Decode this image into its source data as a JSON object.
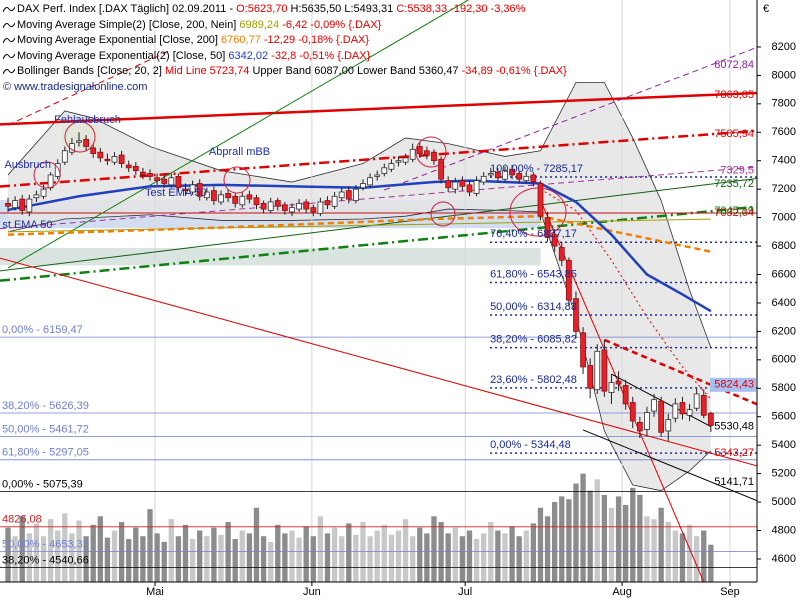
{
  "chart_data": {
    "type": "candlestick",
    "legend": [
      [
        {
          "text": "DAX Perf. Index [.DAX Täglich] 02.09.2011 - ",
          "color": "#000000"
        },
        {
          "text": "O:5623,70",
          "color": "#e00000"
        },
        {
          "text": " H:5635,50 L:5493,31 ",
          "color": "#000000"
        },
        {
          "text": "C:5538,33 -192,30 -3,36%",
          "color": "#e00000"
        }
      ],
      [
        {
          "text": "Moving Average Simple(2) [Close, 200, Nein] ",
          "color": "#000000"
        },
        {
          "text": "6989,24",
          "color": "#a0a000"
        },
        {
          "text": " -6,42 -0,09% {.DAX}",
          "color": "#e00000"
        }
      ],
      [
        {
          "text": "Moving Average Exponential [Close, 200] ",
          "color": "#000000"
        },
        {
          "text": "6760,77",
          "color": "#f08000"
        },
        {
          "text": " -12,29 -0,18% {.DAX}",
          "color": "#e00000"
        }
      ],
      [
        {
          "text": "Moving Average Exponential(2) [Close, 50] ",
          "color": "#000000"
        },
        {
          "text": "6342,02",
          "color": "#2040c0"
        },
        {
          "text": " -32,8 -0,51% {.DAX}",
          "color": "#e00000"
        }
      ],
      [
        {
          "text": "Bollinger Bands [Close, 20, 2] ",
          "color": "#000000"
        },
        {
          "text": "Mid Line 5723,74",
          "color": "#e00000"
        },
        {
          "text": " Upper Band 6087,00 Lower Band 5360,47 ",
          "color": "#000000"
        },
        {
          "text": "-34,89 -0,61% {.DAX}",
          "color": "#e00000"
        }
      ]
    ],
    "watermark": "© www.tradesignalonline.com",
    "currency": "€",
    "xlim": [
      -1.13,
      105.5
    ],
    "xticks": [
      {
        "value": 20.7,
        "label": "Mai"
      },
      {
        "value": 42.8,
        "label": "Jun"
      },
      {
        "value": 64.4,
        "label": "Jul"
      },
      {
        "value": 86.5,
        "label": "Aug"
      },
      {
        "value": 101.7,
        "label": "Sep"
      }
    ],
    "grid": "x",
    "ylim": [
      4438,
      8530
    ],
    "yticks": [
      4600,
      4800,
      5000,
      5200,
      5400,
      5600,
      5800,
      6000,
      6200,
      6400,
      6600,
      6800,
      7000,
      7200,
      7400,
      7600,
      7800,
      8000,
      8200
    ],
    "up_color": "#ffffff",
    "down_color": "#e8202a",
    "candles": [
      [
        7100,
        7140,
        7040,
        7080
      ],
      [
        7070,
        7150,
        7050,
        7120
      ],
      [
        7130,
        7160,
        7020,
        7050
      ],
      [
        7040,
        7160,
        7010,
        7130
      ],
      [
        7140,
        7190,
        7110,
        7160
      ],
      [
        7150,
        7230,
        7130,
        7200
      ],
      [
        7210,
        7320,
        7190,
        7300
      ],
      [
        7290,
        7410,
        7270,
        7380
      ],
      [
        7390,
        7500,
        7370,
        7470
      ],
      [
        7460,
        7560,
        7440,
        7520
      ],
      [
        7530,
        7600,
        7500,
        7540
      ],
      [
        7550,
        7580,
        7470,
        7500
      ],
      [
        7490,
        7520,
        7420,
        7450
      ],
      [
        7460,
        7490,
        7390,
        7420
      ],
      [
        7410,
        7450,
        7370,
        7400
      ],
      [
        7390,
        7460,
        7370,
        7430
      ],
      [
        7440,
        7470,
        7350,
        7380
      ],
      [
        7370,
        7400,
        7320,
        7350
      ],
      [
        7360,
        7390,
        7300,
        7330
      ],
      [
        7320,
        7350,
        7270,
        7300
      ],
      [
        7310,
        7340,
        7260,
        7290
      ],
      [
        7280,
        7310,
        7230,
        7260
      ],
      [
        7270,
        7300,
        7210,
        7240
      ],
      [
        7230,
        7310,
        7210,
        7280
      ],
      [
        7290,
        7310,
        7180,
        7210
      ],
      [
        7200,
        7240,
        7160,
        7190
      ],
      [
        7180,
        7260,
        7160,
        7230
      ],
      [
        7240,
        7270,
        7120,
        7150
      ],
      [
        7140,
        7210,
        7120,
        7180
      ],
      [
        7190,
        7220,
        7090,
        7120
      ],
      [
        7110,
        7190,
        7090,
        7160
      ],
      [
        7170,
        7200,
        7110,
        7140
      ],
      [
        7150,
        7170,
        7070,
        7100
      ],
      [
        7090,
        7180,
        7070,
        7150
      ],
      [
        7160,
        7190,
        7100,
        7130
      ],
      [
        7140,
        7160,
        7060,
        7090
      ],
      [
        7100,
        7120,
        7030,
        7060
      ],
      [
        7050,
        7140,
        7030,
        7110
      ],
      [
        7120,
        7140,
        7050,
        7080
      ],
      [
        7090,
        7110,
        7020,
        7050
      ],
      [
        7040,
        7100,
        7010,
        7070
      ],
      [
        7060,
        7130,
        7040,
        7100
      ],
      [
        7110,
        7130,
        7030,
        7060
      ],
      [
        7070,
        7090,
        7010,
        7040
      ],
      [
        7030,
        7140,
        7010,
        7110
      ],
      [
        7120,
        7150,
        7060,
        7090
      ],
      [
        7080,
        7180,
        7060,
        7150
      ],
      [
        7140,
        7210,
        7120,
        7180
      ],
      [
        7190,
        7220,
        7100,
        7130
      ],
      [
        7120,
        7230,
        7100,
        7200
      ],
      [
        7210,
        7270,
        7190,
        7240
      ],
      [
        7230,
        7310,
        7210,
        7280
      ],
      [
        7290,
        7330,
        7260,
        7300
      ],
      [
        7310,
        7380,
        7290,
        7350
      ],
      [
        7340,
        7410,
        7320,
        7380
      ],
      [
        7390,
        7430,
        7360,
        7400
      ],
      [
        7390,
        7450,
        7370,
        7420
      ],
      [
        7410,
        7520,
        7390,
        7480
      ],
      [
        7500,
        7530,
        7420,
        7450
      ],
      [
        7470,
        7500,
        7410,
        7440
      ],
      [
        7460,
        7480,
        7370,
        7400
      ],
      [
        7410,
        7430,
        7240,
        7270
      ],
      [
        7260,
        7290,
        7180,
        7210
      ],
      [
        7200,
        7280,
        7170,
        7250
      ],
      [
        7260,
        7290,
        7190,
        7220
      ],
      [
        7230,
        7260,
        7150,
        7180
      ],
      [
        7170,
        7290,
        7150,
        7260
      ],
      [
        7250,
        7320,
        7230,
        7290
      ],
      [
        7300,
        7350,
        7280,
        7310
      ],
      [
        7320,
        7350,
        7250,
        7280
      ],
      [
        7270,
        7360,
        7250,
        7330
      ],
      [
        7340,
        7370,
        7270,
        7300
      ],
      [
        7310,
        7330,
        7240,
        7270
      ],
      [
        7260,
        7320,
        7240,
        7290
      ],
      [
        7300,
        7320,
        7220,
        7250
      ],
      [
        7240,
        7260,
        6980,
        7010
      ],
      [
        7000,
        7040,
        6830,
        6860
      ],
      [
        6880,
        6920,
        6760,
        6800
      ],
      [
        6790,
        6830,
        6660,
        6700
      ],
      [
        6700,
        6720,
        6380,
        6420
      ],
      [
        6430,
        6480,
        6150,
        6200
      ],
      [
        6190,
        6230,
        5900,
        5950
      ],
      [
        5960,
        6010,
        5730,
        5800
      ],
      [
        5790,
        6110,
        5760,
        6060
      ],
      [
        6070,
        6140,
        5740,
        5780
      ],
      [
        5770,
        5900,
        5690,
        5840
      ],
      [
        5850,
        5920,
        5780,
        5830
      ],
      [
        5820,
        5860,
        5650,
        5690
      ],
      [
        5700,
        5740,
        5520,
        5570
      ],
      [
        5560,
        5600,
        5450,
        5500
      ],
      [
        5510,
        5670,
        5460,
        5630
      ],
      [
        5640,
        5760,
        5600,
        5720
      ],
      [
        5710,
        5740,
        5460,
        5490
      ],
      [
        5500,
        5620,
        5430,
        5580
      ],
      [
        5590,
        5730,
        5560,
        5690
      ],
      [
        5700,
        5740,
        5580,
        5620
      ],
      [
        5610,
        5690,
        5570,
        5650
      ],
      [
        5660,
        5800,
        5640,
        5760
      ],
      [
        5750,
        5790,
        5590,
        5610
      ],
      [
        5623.7,
        5635.5,
        5493.31,
        5538.33
      ]
    ],
    "volume_up_color": "#c8c8c8",
    "volume_down_color": "#8c8c8c",
    "volume": [
      4820,
      4760,
      4900,
      4780,
      4850,
      4760,
      4880,
      4800,
      4920,
      4780,
      4870,
      4760,
      4840,
      4900,
      4750,
      4800,
      4860,
      4740,
      4820,
      4760,
      4950,
      4780,
      4720,
      4880,
      4760,
      4840,
      4740,
      4800,
      4760,
      4820,
      4770,
      4860,
      4740,
      4800,
      4780,
      4960,
      4760,
      4720,
      4840,
      4780,
      4800,
      4750,
      4830,
      4760,
      4900,
      4780,
      4820,
      4760,
      4850,
      4770,
      4860,
      4760,
      4800,
      4840,
      4770,
      4800,
      4880,
      4760,
      4820,
      4780,
      4900,
      4860,
      4780,
      4820,
      4760,
      4800,
      4740,
      4780,
      4860,
      4800,
      4780,
      4830,
      4760,
      4800,
      4850,
      4960,
      4900,
      5000,
      5040,
      5020,
      5130,
      5200,
      5080,
      5160,
      5050,
      4960,
      5040,
      4980,
      5100,
      5050,
      4900,
      4880,
      4960,
      4860,
      4800,
      4780,
      4840,
      4760,
      4800,
      4700
    ],
    "band": {
      "x": [
        0,
        8,
        12,
        20,
        30,
        40,
        50,
        56,
        62,
        70,
        75,
        80,
        84,
        88,
        92,
        96,
        99
      ],
      "upper": [
        7300,
        7750,
        7700,
        7500,
        7330,
        7250,
        7380,
        7560,
        7520,
        7430,
        7470,
        7950,
        7950,
        7560,
        7120,
        6490,
        6087.0
      ],
      "lower": [
        6900,
        6990,
        7000,
        7020,
        6980,
        6980,
        6990,
        7010,
        7060,
        7050,
        7040,
        6300,
        5500,
        5120,
        5080,
        5220,
        5360.47
      ],
      "color": "#e4e4e4",
      "line_color": "#303030"
    },
    "indicators": [
      {
        "x": [
          0,
          99
        ],
        "values": [
          6900,
          6989.24
        ],
        "color": "#a0a000",
        "style": "solid",
        "weight": "thin"
      },
      {
        "x": [
          0,
          30,
          60,
          75,
          99
        ],
        "values": [
          6880,
          6930,
          6990,
          7010,
          6760.77
        ],
        "color": "#f08000",
        "style": "dashed",
        "weight": "thick"
      },
      {
        "x": [
          0,
          10,
          20,
          30,
          40,
          50,
          60,
          65,
          70,
          75,
          80,
          85,
          90,
          95,
          99
        ],
        "values": [
          7054,
          7150,
          7220,
          7230,
          7220,
          7210,
          7250,
          7260,
          7250,
          7240,
          7110,
          6880,
          6600,
          6460,
          6342.02
        ],
        "color": "#2040c0",
        "style": "solid",
        "weight": "thick"
      },
      {
        "x": [
          75,
          80,
          85,
          90,
          95,
          99
        ],
        "values": [
          7200,
          7050,
          6700,
          6300,
          5950,
          5723.74
        ],
        "color": "#e00000",
        "style": "dotted",
        "weight": "thin"
      }
    ],
    "zones": [
      {
        "x": [
          -1.13,
          75
        ],
        "range": [
          6926,
          7124
        ],
        "color": "#c8d4ec"
      },
      {
        "x": [
          -1.13,
          75
        ],
        "range": [
          6664,
          6786
        ],
        "color": "#d0dcd8"
      },
      {
        "x": [
          7.7,
          12.9
        ],
        "range": [
          7470,
          7650
        ],
        "color": "#c8e890"
      },
      {
        "x": [
          19.3,
          26.3
        ],
        "range": [
          7160,
          7405
        ],
        "color": "#d8d8d8"
      }
    ],
    "levels": [
      {
        "value": 6159.47,
        "label": "0,00% - 6159,47",
        "color": "#7080d0"
      },
      {
        "value": 5626.39,
        "label": "38,20% - 5626,39",
        "color": "#7080d0"
      },
      {
        "value": 5461.72,
        "label": "50,00% - 5461,72",
        "color": "#7080d0"
      },
      {
        "value": 5297.05,
        "label": "61,80% - 5297,05",
        "color": "#7080d0"
      },
      {
        "value": 5075.39,
        "label": "0,00% - 5075,39",
        "color": "#000000"
      },
      {
        "value": 4826.08,
        "label": "4826,08",
        "color": "#d02020"
      },
      {
        "value": 4653.35,
        "label": "50,00% - 4653,35",
        "color": "#7080d0"
      },
      {
        "value": 4540.66,
        "label": "38,20% - 4540,66",
        "color": "#000000"
      }
    ],
    "fib": {
      "start": 67.9,
      "color": "#1a2a90",
      "levels": [
        {
          "value": 7285.17,
          "label": "100,00% - 7285,17"
        },
        {
          "value": 6827.17,
          "label": "76,40% - 6827,17"
        },
        {
          "value": 6543.85,
          "label": "61,80% - 6543,85"
        },
        {
          "value": 6314.83,
          "label": "50,00% - 6314,83"
        },
        {
          "value": 6085.82,
          "label": "38,20% - 6085,82"
        },
        {
          "value": 5802.48,
          "label": "23,60% - 5802,48"
        },
        {
          "value": 5344.48,
          "label": "0,00% - 5344,48"
        }
      ]
    },
    "trendlines": [
      {
        "x": [
          0,
          99
        ],
        "y": [
          7658,
          7863.05
        ],
        "label": "7863,05",
        "color": "#e00000",
        "style": "solid",
        "weight": "thick",
        "extend": "both"
      },
      {
        "x": [
          0,
          99
        ],
        "y": [
          7223,
          7585.94
        ],
        "label": "7585,94",
        "color": "#e00000",
        "style": "dashdot",
        "weight": "thick",
        "extend": "both"
      },
      {
        "x": [
          53,
          99
        ],
        "y": [
          7194,
          8072.84
        ],
        "label": "8072,84",
        "color": "#9020a0",
        "style": "dashed",
        "weight": "thin",
        "extend": "right"
      },
      {
        "x": [
          0,
          99
        ],
        "y": [
          6927,
          7329.5
        ],
        "label": "7329,5",
        "color": "#a030a0",
        "style": "dashed",
        "weight": "thin",
        "extend": "both"
      },
      {
        "x": [
          0,
          99
        ],
        "y": [
          6632,
          7235.72
        ],
        "label": "7235,72",
        "color": "#106010",
        "style": "solid",
        "weight": "thin",
        "extend": "both"
      },
      {
        "x": [
          0,
          99
        ],
        "y": [
          6562,
          7045.19
        ],
        "label": "7045,19",
        "color": "#108010",
        "style": "dashdot",
        "weight": "thick",
        "extend": "both"
      },
      {
        "x": [
          0,
          99
        ],
        "y": [
          7032.04,
          7032.04
        ],
        "label": "7032,04",
        "color": "#c01010",
        "style": "solid",
        "weight": "thin",
        "extend": "both"
      },
      {
        "x": [
          0,
          60
        ],
        "y": [
          6646,
          8390
        ],
        "color": "#108010",
        "style": "solid",
        "weight": "thin",
        "extend": "right"
      },
      {
        "x": [
          0,
          23
        ],
        "y": [
          7651,
          8179
        ],
        "color": "#e00000",
        "style": "dashed",
        "weight": "thin",
        "extend": "none"
      },
      {
        "x": [
          0,
          99
        ],
        "y": [
          6700,
          5343.27
        ],
        "label": "5343,27",
        "color": "#e00000",
        "style": "solid",
        "weight": "thin",
        "extend": "both"
      },
      {
        "x": [
          75,
          98
        ],
        "y": [
          7124,
          4438
        ],
        "color": "#e00000",
        "style": "solid",
        "weight": "thin",
        "extend": "none"
      },
      {
        "x": [
          84,
          99
        ],
        "y": [
          6140,
          5824.43
        ],
        "label": "5824,43",
        "label_bg": "#a8c0f0",
        "color": "#e00000",
        "style": "dashed",
        "weight": "thick",
        "extend": "right"
      },
      {
        "x": [
          81,
          99
        ],
        "y": [
          5507,
          5141.71
        ],
        "label": "5141,71",
        "color": "#000000",
        "style": "solid",
        "weight": "thin",
        "extend": "right"
      },
      {
        "x": [
          85,
          99
        ],
        "y": [
          5900,
          5530.48
        ],
        "label": "5530,48",
        "color": "#000000",
        "style": "solid",
        "weight": "thin",
        "extend": "none"
      }
    ],
    "annotations": [
      {
        "text": "Fehlausbruch",
        "x": 6.5,
        "y": 7687,
        "color": "#2030a0"
      },
      {
        "text": "Ausbruch",
        "x": -0.5,
        "y": 7370,
        "color": "#2030a0"
      },
      {
        "text": "Test EMA 50",
        "x": 19.3,
        "y": 7173,
        "color": "#2030a0"
      },
      {
        "text": "Abprall mBB",
        "x": 28.3,
        "y": 7462,
        "color": "#2030a0"
      },
      {
        "text": "st EMA 50",
        "x": -0.8,
        "y": 6948,
        "color": "#2030a0"
      }
    ]
  }
}
